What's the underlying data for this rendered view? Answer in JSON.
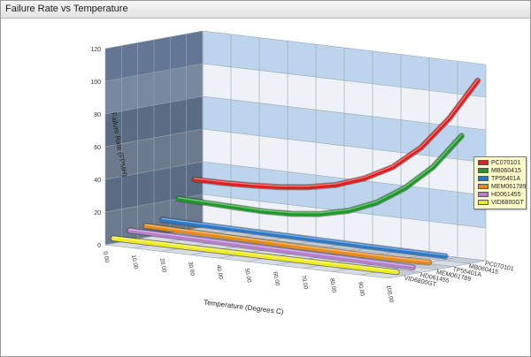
{
  "window": {
    "title": "Failure Rate vs Temperature"
  },
  "chart_data": {
    "type": "line",
    "title": "",
    "xlabel": "Temperature (Degrees C)",
    "ylabel": "Failure Rate (FPMH)",
    "ylim": [
      0,
      120
    ],
    "y_ticks": [
      "0",
      "20",
      "40",
      "60",
      "80",
      "100",
      "120"
    ],
    "x": [
      0,
      10,
      20,
      30,
      40,
      50,
      60,
      70,
      80,
      90,
      100
    ],
    "x_tick_labels": [
      "0.00",
      "10.00",
      "20.00",
      "30.00",
      "40.00",
      "50.00",
      "60.00",
      "70.00",
      "80.00",
      "90.00",
      "100.00"
    ],
    "depth_labels": [
      "PC070101",
      "MB060415",
      "TP55401A",
      "MEM061789",
      "HD061455",
      "VID6800GT"
    ],
    "grid": true,
    "legend_position": "right",
    "series": [
      {
        "name": "PC070101",
        "color": "#e02020",
        "values": [
          30,
          30,
          30.5,
          31.5,
          33.5,
          37,
          43,
          52,
          66,
          86,
          111
        ]
      },
      {
        "name": "MB060415",
        "color": "#1e9a28",
        "values": [
          20,
          19.5,
          19,
          18.5,
          19,
          21,
          25,
          32,
          43,
          58,
          79
        ]
      },
      {
        "name": "TP55401A",
        "color": "#2a78c8",
        "values": [
          9,
          8.8,
          8.6,
          8.4,
          8.2,
          8,
          7.8,
          7.6,
          7.4,
          7.3,
          7.2
        ]
      },
      {
        "name": "MEM061789",
        "color": "#e88a1a",
        "values": [
          7,
          6.7,
          6.4,
          6.1,
          5.8,
          5.5,
          5.3,
          5.1,
          5,
          5,
          5.2
        ]
      },
      {
        "name": "HD061455",
        "color": "#b77ed0",
        "values": [
          6,
          5.8,
          5.6,
          5.4,
          5.2,
          5,
          4.8,
          4.6,
          4.4,
          4.2,
          4
        ]
      },
      {
        "name": "VID6800GT",
        "color": "#eded20",
        "values": [
          3,
          3,
          3,
          3,
          3,
          3,
          3,
          3,
          3,
          3,
          3
        ]
      }
    ]
  }
}
